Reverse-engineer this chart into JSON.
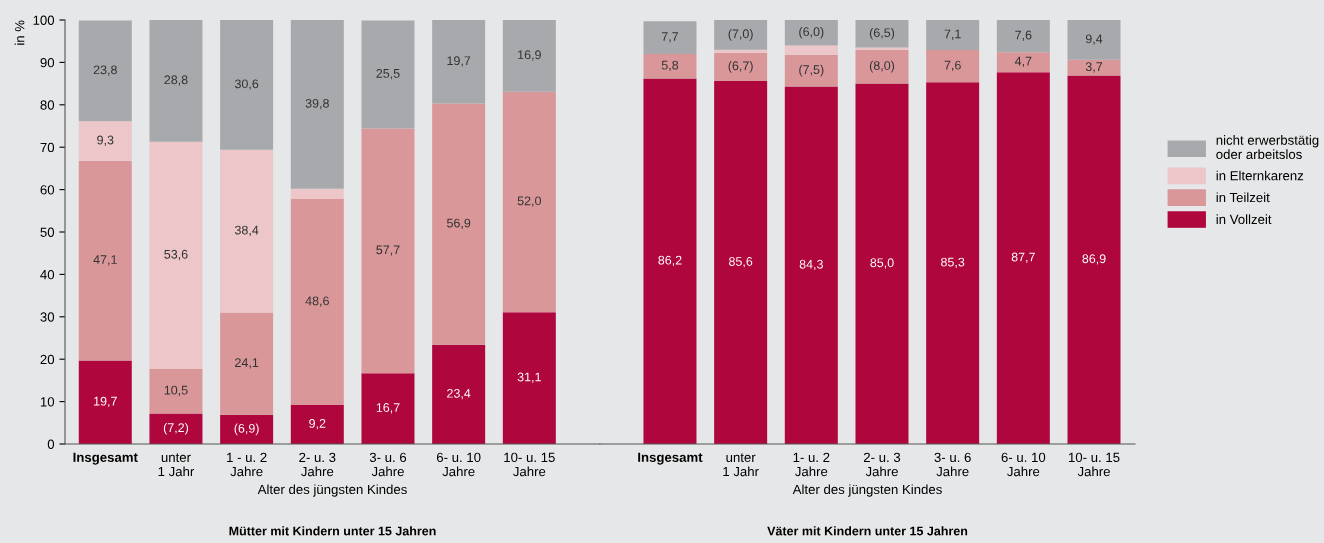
{
  "chart_data": [
    {
      "type": "bar",
      "stacked": true,
      "title": "Mütter mit Kindern unter 15 Jahren",
      "xlabel": "Alter des jüngsten Kindes",
      "ylabel": "in %",
      "categories": [
        "Insgesamt",
        "unter\n1 Jahr",
        "1 - u. 2\nJahre",
        "2- u. 3\nJahre",
        "3- u. 6\nJahre",
        "6- u. 10\nJahre",
        "10- u. 15\nJahre"
      ],
      "ylim": [
        0,
        100
      ],
      "yticks": [
        0,
        10,
        20,
        30,
        40,
        50,
        60,
        70,
        80,
        90,
        100
      ],
      "legend": false,
      "series": [
        {
          "color": "#b0063e",
          "values": [
            19.7,
            7.2,
            6.9,
            9.2,
            16.7,
            23.4,
            31.1
          ],
          "value_labels": [
            "19,7",
            "(7,2)",
            "(6,9)",
            "9,2",
            "16,7",
            "23,4",
            "31,1"
          ]
        },
        {
          "color": "#d9979a",
          "values": [
            47.1,
            10.5,
            24.1,
            48.6,
            57.7,
            56.9,
            52.0
          ],
          "value_labels": [
            "47,1",
            "10,5",
            "24,1",
            "48,6",
            "57,7",
            "56,9",
            "52,0"
          ]
        },
        {
          "color": "#ecc6c8",
          "values": [
            9.3,
            53.6,
            38.4,
            2.4,
            null,
            null,
            null
          ],
          "value_labels": [
            "9,3",
            "53,6",
            "38,4",
            null,
            null,
            null,
            null
          ]
        },
        {
          "color": "#a7a9ac",
          "values": [
            23.8,
            28.8,
            30.6,
            39.8,
            25.5,
            19.7,
            16.9
          ],
          "value_labels": [
            "23,8",
            "28,8",
            "30,6",
            "39,8",
            "25,5",
            "19,7",
            "16,9"
          ]
        }
      ]
    },
    {
      "type": "bar",
      "stacked": true,
      "title": "Väter mit Kindern unter 15 Jahren",
      "xlabel": "Alter des jüngsten Kindes",
      "categories": [
        "Insgesamt",
        "unter\n1 Jahr",
        "1- u. 2\nJahre",
        "2- u. 3\nJahre",
        "3- u. 6\nJahre",
        "6- u. 10\nJahre",
        "10- u. 15\nJahre"
      ],
      "ylim": [
        0,
        100
      ],
      "tick_labels": "x",
      "legend": "right",
      "series": [
        {
          "name": "in Vollzeit",
          "color": "#b0063e",
          "values": [
            86.2,
            85.6,
            84.3,
            85.0,
            85.3,
            87.7,
            86.9
          ],
          "value_labels": [
            "86,2",
            "85,6",
            "84,3",
            "85,0",
            "85,3",
            "87,7",
            "86,9"
          ]
        },
        {
          "name": "in Teilzeit",
          "color": "#d9979a",
          "values": [
            5.8,
            6.7,
            7.5,
            8.0,
            7.6,
            4.7,
            3.7
          ],
          "value_labels": [
            "5,8",
            "(6,7)",
            "(7,5)",
            "(8,0)",
            "7,6",
            "4,7",
            "3,7"
          ]
        },
        {
          "name": "in Elternkarenz",
          "color": "#ecc6c8",
          "values": [
            null,
            0.7,
            2.2,
            0.5,
            null,
            null,
            null
          ],
          "value_labels": [
            null,
            null,
            null,
            null,
            null,
            null,
            null
          ]
        },
        {
          "name": "nicht erwerbstätig\noder arbeitslos",
          "color": "#a7a9ac",
          "values": [
            7.7,
            7.0,
            6.0,
            6.5,
            7.1,
            7.6,
            9.4
          ],
          "value_labels": [
            "7,7",
            "(7,0)",
            "(6,0)",
            "(6,5)",
            "7,1",
            "7,6",
            "9,4"
          ]
        }
      ]
    }
  ]
}
